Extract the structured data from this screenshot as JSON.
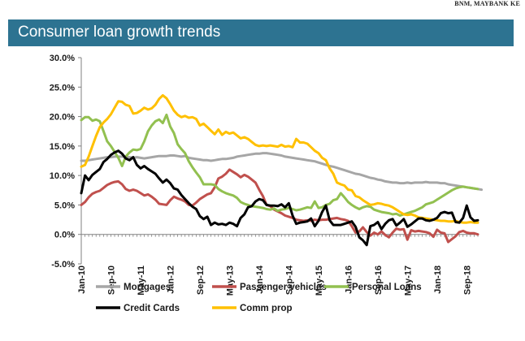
{
  "source": "BNM, MAYBANK KE",
  "banner": {
    "title": "Consumer loan growth trends"
  },
  "chart_data": {
    "type": "line",
    "ylim": [
      -5,
      30
    ],
    "yticks": [
      -5,
      0,
      5,
      10,
      15,
      20,
      25,
      30
    ],
    "ytick_labels": [
      "-5.0%",
      "0.0%",
      "5.0%",
      "10.0%",
      "15.0%",
      "20.0%",
      "25.0%",
      "30.0%"
    ],
    "x_start": "Jan-10",
    "x_months": 108,
    "xtick_labels": [
      "Jan-10",
      "Sep-10",
      "May-11",
      "Jan-12",
      "Sep-12",
      "May-13",
      "Jan-14",
      "Sep-14",
      "May-15",
      "Jan-16",
      "Sep-16",
      "May-17",
      "Jan-18",
      "Sep-18"
    ],
    "grid": false,
    "legend": "bottom",
    "series": [
      {
        "name": "Mortgages",
        "color": "#a6a6a6",
        "values": [
          12.5,
          12.5,
          12.6,
          12.7,
          12.8,
          12.9,
          13.0,
          13.1,
          13.1,
          13.2,
          13.2,
          13.2,
          13.1,
          13.1,
          13.0,
          13.1,
          13.0,
          12.9,
          13.0,
          13.1,
          13.2,
          13.3,
          13.3,
          13.3,
          13.4,
          13.4,
          13.3,
          13.2,
          13.3,
          13.0,
          12.9,
          12.8,
          12.7,
          12.6,
          12.6,
          12.5,
          12.6,
          12.7,
          12.8,
          12.8,
          12.9,
          13.0,
          13.2,
          13.3,
          13.4,
          13.5,
          13.6,
          13.7,
          13.7,
          13.8,
          13.8,
          13.7,
          13.6,
          13.5,
          13.4,
          13.2,
          13.1,
          13.0,
          12.9,
          12.8,
          12.7,
          12.6,
          12.5,
          12.4,
          12.2,
          12.0,
          11.8,
          11.6,
          11.5,
          11.3,
          11.1,
          10.9,
          10.7,
          10.5,
          10.3,
          10.2,
          10.0,
          9.8,
          9.6,
          9.5,
          9.3,
          9.2,
          9.0,
          8.9,
          8.8,
          8.8,
          8.7,
          8.7,
          8.8,
          8.7,
          8.8,
          8.8,
          8.8,
          8.9,
          8.8,
          8.8,
          8.8,
          8.7,
          8.7,
          8.5,
          8.4,
          8.3,
          8.2,
          8.1,
          8.0,
          7.9,
          7.8,
          7.7,
          7.6
        ]
      },
      {
        "name": "Passenger vehicles",
        "color": "#c0504d",
        "values": [
          5.0,
          5.5,
          6.3,
          6.9,
          7.2,
          7.4,
          7.9,
          8.4,
          8.7,
          8.9,
          9.0,
          8.5,
          7.7,
          7.4,
          7.6,
          7.4,
          7.0,
          6.6,
          6.8,
          6.4,
          5.9,
          5.2,
          5.1,
          5.0,
          5.8,
          6.4,
          6.1,
          5.9,
          5.6,
          5.0,
          4.9,
          5.4,
          6.0,
          6.4,
          6.8,
          7.0,
          8.0,
          9.5,
          9.8,
          10.3,
          11.0,
          10.6,
          10.2,
          9.7,
          10.1,
          9.8,
          9.3,
          8.8,
          7.6,
          6.5,
          5.0,
          4.8,
          4.2,
          3.9,
          3.6,
          3.2,
          3.0,
          2.8,
          2.5,
          2.4,
          2.3,
          2.4,
          2.3,
          2.5,
          2.4,
          2.5,
          2.5,
          2.6,
          2.7,
          2.8,
          2.6,
          2.5,
          2.3,
          1.4,
          0.3,
          0.5,
          1.2,
          0.4,
          -0.2,
          0.3,
          0.0,
          0.5,
          -0.1,
          -0.5,
          0.3,
          1.0,
          0.8,
          0.9,
          -0.9,
          0.7,
          0.5,
          0.6,
          0.5,
          0.4,
          0.2,
          -0.4,
          0.8,
          0.3,
          0.2,
          -1.3,
          -0.8,
          -0.3,
          0.4,
          0.6,
          0.3,
          0.2,
          0.2,
          0.0
        ]
      },
      {
        "name": "Personal Loans",
        "color": "#92c050",
        "values": [
          19.4,
          19.9,
          19.9,
          19.3,
          19.5,
          19.2,
          17.5,
          15.8,
          15.0,
          14.0,
          13.0,
          11.6,
          13.2,
          13.9,
          14.4,
          14.3,
          14.5,
          15.8,
          17.5,
          18.5,
          19.2,
          19.5,
          18.9,
          20.3,
          18.3,
          17.2,
          15.3,
          14.5,
          13.8,
          12.4,
          11.4,
          10.5,
          9.7,
          8.5,
          8.5,
          8.5,
          8.4,
          7.7,
          7.3,
          7.0,
          6.8,
          6.6,
          6.2,
          5.5,
          5.2,
          5.0,
          4.8,
          4.7,
          4.6,
          4.5,
          4.3,
          4.2,
          4.4,
          4.0,
          4.2,
          4.3,
          4.5,
          4.3,
          4.1,
          4.2,
          4.4,
          4.6,
          4.5,
          5.6,
          4.5,
          4.6,
          5.0,
          5.2,
          5.8,
          6.0,
          7.0,
          6.3,
          5.5,
          5.0,
          4.6,
          4.3,
          4.6,
          4.8,
          4.7,
          4.2,
          4.0,
          3.8,
          3.7,
          3.6,
          3.4,
          3.5,
          3.2,
          3.4,
          3.6,
          3.8,
          4.0,
          4.3,
          4.6,
          5.1,
          5.3,
          5.5,
          5.9,
          6.3,
          6.7,
          7.1,
          7.5,
          7.8,
          8.0,
          8.1,
          8.0,
          7.9,
          7.8,
          7.7
        ]
      },
      {
        "name": "Credit Cards",
        "color": "#000000",
        "values": [
          7.0,
          10.0,
          9.2,
          10.1,
          10.6,
          11.1,
          12.3,
          12.8,
          13.5,
          13.9,
          14.2,
          13.7,
          12.9,
          12.6,
          13.1,
          11.8,
          11.2,
          11.6,
          11.1,
          10.7,
          10.3,
          9.5,
          8.8,
          9.3,
          8.7,
          7.8,
          7.6,
          6.7,
          6.0,
          5.3,
          4.7,
          4.3,
          3.1,
          2.6,
          3.0,
          1.6,
          2.0,
          1.7,
          1.8,
          1.6,
          2.0,
          1.8,
          1.4,
          2.8,
          3.4,
          4.6,
          4.8,
          5.6,
          6.0,
          5.8,
          5.0,
          4.9,
          4.9,
          4.8,
          5.1,
          4.6,
          5.3,
          3.2,
          1.8,
          2.0,
          2.1,
          2.2,
          2.7,
          1.4,
          2.3,
          3.8,
          4.9,
          2.4,
          1.6,
          1.6,
          1.6,
          1.8,
          2.0,
          2.2,
          1.3,
          -0.5,
          -1.0,
          -1.8,
          1.4,
          1.6,
          2.1,
          0.9,
          1.8,
          2.4,
          2.6,
          1.5,
          2.0,
          2.6,
          1.3,
          1.7,
          2.2,
          2.7,
          2.7,
          2.4,
          2.3,
          2.5,
          2.8,
          3.6,
          3.8,
          3.6,
          3.7,
          2.1,
          2.0,
          2.8,
          4.9,
          2.9,
          2.3,
          2.4
        ]
      },
      {
        "name": "Comm prop",
        "color": "#ffc000",
        "values": [
          11.5,
          11.8,
          13.2,
          15.0,
          16.7,
          18.2,
          19.0,
          19.6,
          20.4,
          21.5,
          22.6,
          22.5,
          22.0,
          21.8,
          20.5,
          20.6,
          21.0,
          21.5,
          21.2,
          21.4,
          22.0,
          23.0,
          23.6,
          23.1,
          22.1,
          21.0,
          20.3,
          19.9,
          20.1,
          19.8,
          19.9,
          19.6,
          18.5,
          18.8,
          18.2,
          17.6,
          17.0,
          17.8,
          16.9,
          17.4,
          17.1,
          17.3,
          16.8,
          16.3,
          16.5,
          16.2,
          15.7,
          15.2,
          15.0,
          15.1,
          15.0,
          15.1,
          15.0,
          14.9,
          15.2,
          14.9,
          15.0,
          14.8,
          16.2,
          15.6,
          15.6,
          15.4,
          14.8,
          14.2,
          13.8,
          13.0,
          12.6,
          11.2,
          10.3,
          8.8,
          8.5,
          8.3,
          7.6,
          7.5,
          6.5,
          6.3,
          5.8,
          5.4,
          5.0,
          5.1,
          5.3,
          5.2,
          5.0,
          4.9,
          4.6,
          4.2,
          3.8,
          3.4,
          3.3,
          3.4,
          3.2,
          2.9,
          2.8,
          2.7,
          2.6,
          2.5,
          2.4,
          2.3,
          2.3,
          2.2,
          2.2,
          2.3,
          2.1,
          2.0,
          2.0,
          2.1,
          2.0,
          2.0
        ]
      }
    ]
  }
}
